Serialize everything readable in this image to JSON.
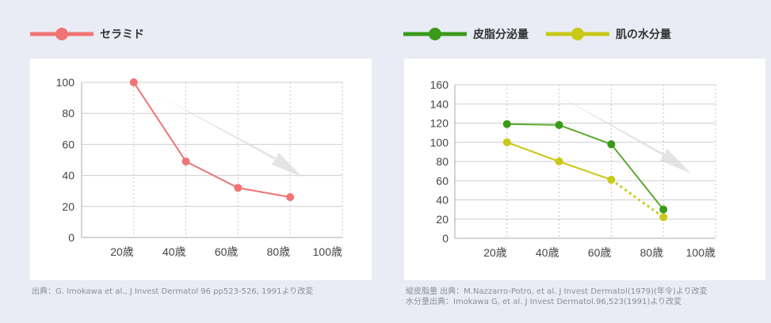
{
  "legends": {
    "left": [
      {
        "label": "セラミド",
        "color": "#f07474"
      }
    ],
    "right": [
      {
        "label": "皮脂分泌量",
        "color": "#3a9a1a"
      },
      {
        "label": "肌の水分量",
        "color": "#c9c918"
      }
    ]
  },
  "notes": {
    "left": "出典：G. Imokawa et al., J  Invest Dermatol 96 pp523-526, 1991より改変",
    "right_line1": "縦皮脂量 出典：M.Nazzarro-Potro, et al. J Invest Dermatol(1979)(年令)より改変",
    "right_line2": "水分量出典：Imokawa G, et al. J Invest Dermatol.96,523(1991)より改変"
  },
  "chart_data": [
    {
      "type": "line",
      "x": [
        20,
        40,
        60,
        80
      ],
      "xticks": [
        "20歳",
        "40歳",
        "60歳",
        "80歳",
        "100歳"
      ],
      "yticks": [
        "0",
        "20",
        "40",
        "60",
        "80",
        "100"
      ],
      "ylim": [
        0,
        100
      ],
      "xlim": [
        0,
        100
      ],
      "grid": true,
      "series": [
        {
          "name": "セラミド",
          "color": "#f07474",
          "values": [
            100,
            49,
            32,
            26
          ]
        }
      ]
    },
    {
      "type": "line",
      "x": [
        20,
        40,
        60,
        80
      ],
      "xticks": [
        "20歳",
        "40歳",
        "60歳",
        "80歳",
        "100歳"
      ],
      "yticks": [
        "0",
        "20",
        "40",
        "60",
        "80",
        "100",
        "120",
        "140",
        "160"
      ],
      "ylim": [
        0,
        160
      ],
      "xlim": [
        0,
        100
      ],
      "grid": true,
      "series": [
        {
          "name": "皮脂分泌量",
          "color": "#5aab30",
          "marker": "#3a9a1a",
          "values": [
            119,
            118,
            98,
            30
          ]
        },
        {
          "name": "肌の水分量",
          "color": "#c9c918",
          "marker": "#c9c918",
          "values": [
            100,
            80,
            61,
            22
          ],
          "dashed_last_segment": true
        }
      ]
    }
  ]
}
